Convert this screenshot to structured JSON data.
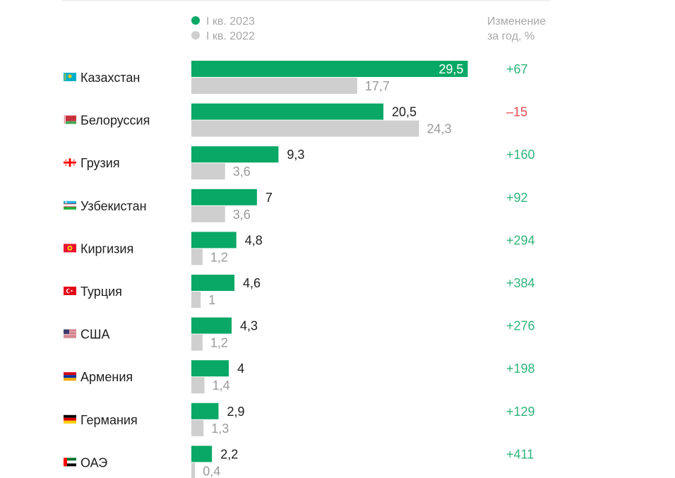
{
  "chart_data": {
    "type": "bar",
    "orientation": "horizontal",
    "legend": [
      {
        "label": "I кв. 2023",
        "color": "#0aa866"
      },
      {
        "label": "I кв. 2022",
        "color": "#cfcfcf"
      }
    ],
    "change_header": [
      "Изменение",
      "за год, %"
    ],
    "categories": [
      "Казахстан",
      "Белоруссия",
      "Грузия",
      "Узбекистан",
      "Киргизия",
      "Турция",
      "США",
      "Армения",
      "Германия",
      "ОАЭ"
    ],
    "flag_icons": [
      "kazakhstan-flag-icon",
      "belarus-flag-icon",
      "georgia-flag-icon",
      "uzbekistan-flag-icon",
      "kyrgyzstan-flag-icon",
      "turkey-flag-icon",
      "usa-flag-icon",
      "armenia-flag-icon",
      "germany-flag-icon",
      "uae-flag-icon"
    ],
    "series": [
      {
        "name": "I кв. 2023",
        "values": [
          29.5,
          20.5,
          9.3,
          7,
          4.8,
          4.6,
          4.3,
          4,
          2.9,
          2.2
        ],
        "labels": [
          "29,5",
          "20,5",
          "9,3",
          "7",
          "4,8",
          "4,6",
          "4,3",
          "4",
          "2,9",
          "2,2"
        ]
      },
      {
        "name": "I кв. 2022",
        "values": [
          17.7,
          24.3,
          3.6,
          3.6,
          1.2,
          1,
          1.2,
          1.4,
          1.3,
          0.4
        ],
        "labels": [
          "17,7",
          "24,3",
          "3,6",
          "3,6",
          "1,2",
          "1",
          "1,2",
          "1,4",
          "1,3",
          "0,4"
        ]
      }
    ],
    "change_pct": [
      "+67",
      "–15",
      "+160",
      "+92",
      "+294",
      "+384",
      "+276",
      "+198",
      "+129",
      "+411"
    ],
    "change_colors": {
      "positive": "#2fb57a",
      "negative": "#e5484d"
    }
  }
}
